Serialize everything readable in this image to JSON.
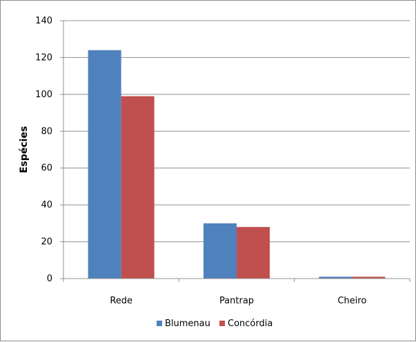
{
  "chart_data": {
    "type": "bar",
    "categories": [
      "Rede",
      "Pantrap",
      "Cheiro"
    ],
    "series": [
      {
        "name": "Blumenau",
        "values": [
          124,
          30,
          1
        ],
        "color": "#4f81bd"
      },
      {
        "name": "Concórdia",
        "values": [
          99,
          28,
          1
        ],
        "color": "#c0504d"
      }
    ],
    "title": "",
    "xlabel": "",
    "ylabel": "Espécies",
    "ylim": [
      0,
      140
    ],
    "yticks": [
      "0",
      "20",
      "40",
      "60",
      "80",
      "100",
      "120",
      "140"
    ],
    "grid": "horizontal",
    "legend_position": "bottom"
  }
}
